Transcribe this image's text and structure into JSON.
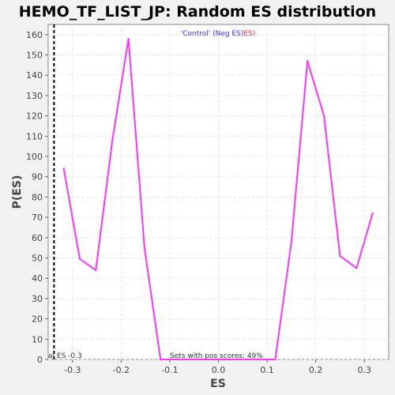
{
  "chart_data": {
    "type": "line",
    "title": "HEMO_TF_LIST_JP: Random ES distribution",
    "xlabel": "ES",
    "ylabel": "P(ES)",
    "xlim": [
      -0.35,
      0.35
    ],
    "ylim": [
      0,
      165
    ],
    "x_ticks": [
      "-0.3",
      "-0.2",
      "-0.1",
      "0.0",
      "0.1",
      "0.2",
      "0.3"
    ],
    "y_ticks": [
      "0",
      "10",
      "20",
      "30",
      "40",
      "50",
      "60",
      "70",
      "80",
      "90",
      "100",
      "110",
      "120",
      "130",
      "140",
      "150",
      "160"
    ],
    "grid": true,
    "legend": {
      "placement": "top-center",
      "part1": "'Control' (Neg ES)",
      "part1_color": "#3333ff",
      "part2": "ES)",
      "part2_color": "#ff2222"
    },
    "series": [
      {
        "color": "#ff33ff",
        "points": [
          [
            -0.318,
            94
          ],
          [
            -0.285,
            49.5
          ],
          [
            -0.252,
            44
          ],
          [
            -0.218,
            108
          ],
          [
            -0.185,
            158
          ],
          [
            -0.152,
            55
          ],
          [
            -0.119,
            0
          ],
          [
            0.117,
            0
          ],
          [
            0.15,
            58
          ],
          [
            0.183,
            147
          ],
          [
            0.217,
            120
          ],
          [
            0.25,
            51
          ],
          [
            0.284,
            45
          ],
          [
            0.317,
            72
          ]
        ]
      }
    ],
    "vline": {
      "x": -0.338,
      "style": "dashed",
      "color": "#000000"
    },
    "annotations": {
      "actual_es": "al ES -0.3",
      "pos_scores": "Sets with pos scores: 49%"
    }
  }
}
